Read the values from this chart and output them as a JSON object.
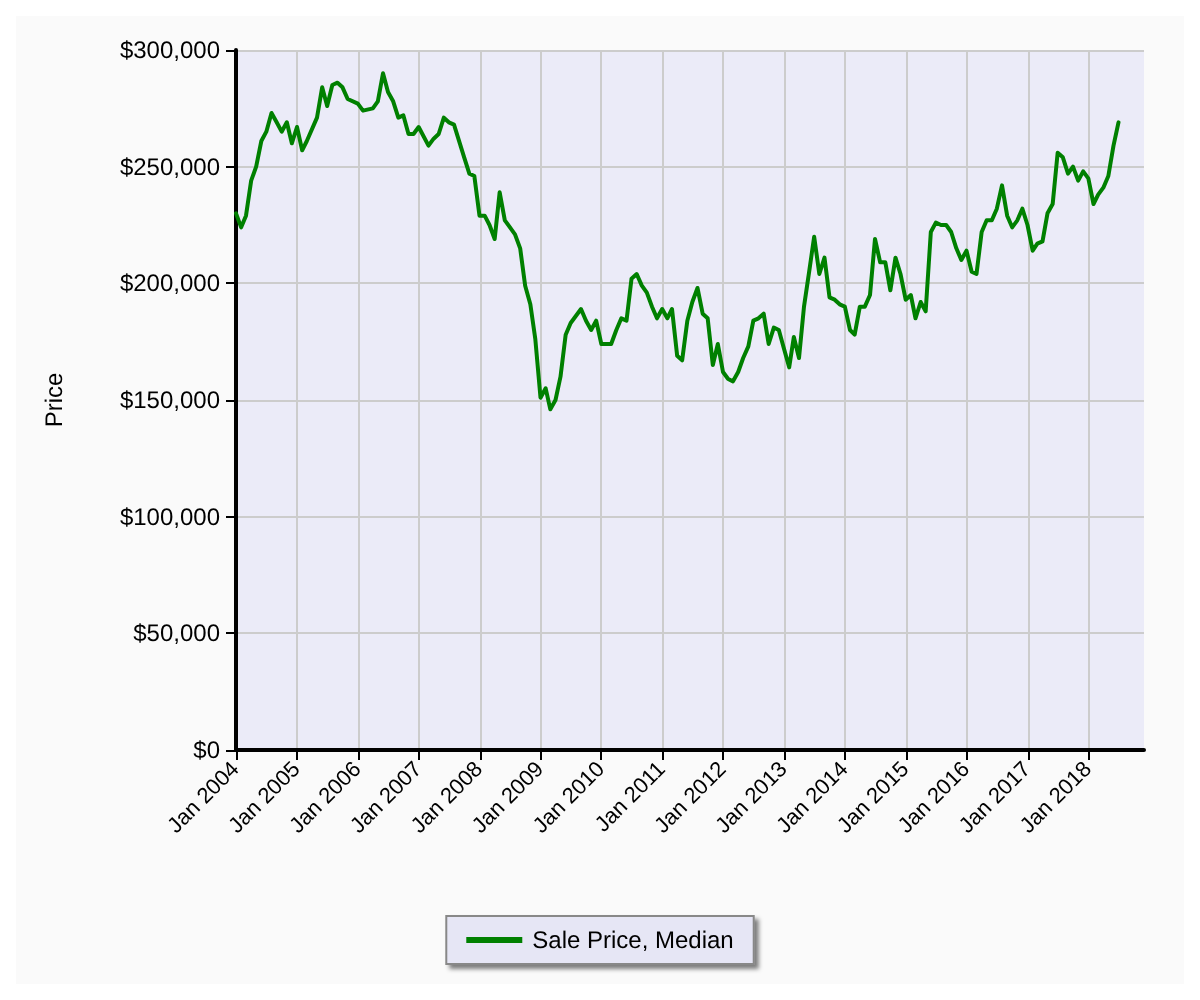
{
  "chart_data": {
    "type": "line",
    "ylabel": "Price",
    "x": [
      "2004-01",
      "2004-02",
      "2004-03",
      "2004-04",
      "2004-05",
      "2004-06",
      "2004-07",
      "2004-08",
      "2004-09",
      "2004-10",
      "2004-11",
      "2004-12",
      "2005-01",
      "2005-02",
      "2005-03",
      "2005-05",
      "2005-06",
      "2005-07",
      "2005-08",
      "2005-09",
      "2005-10",
      "2005-11",
      "2006-01",
      "2006-02",
      "2006-04",
      "2006-05",
      "2006-06",
      "2006-07",
      "2006-08",
      "2006-09",
      "2006-10",
      "2006-11",
      "2006-12",
      "2007-01",
      "2007-03",
      "2007-04",
      "2007-05",
      "2007-06",
      "2007-07",
      "2007-08",
      "2007-10",
      "2007-11",
      "2007-12",
      "2008-01",
      "2008-02",
      "2008-03",
      "2008-04",
      "2008-05",
      "2008-06",
      "2008-08",
      "2008-09",
      "2008-10",
      "2008-11",
      "2008-12",
      "2009-01",
      "2009-02",
      "2009-03",
      "2009-04",
      "2009-05",
      "2009-06",
      "2009-07",
      "2009-08",
      "2009-09",
      "2009-10",
      "2009-11",
      "2009-12",
      "2010-01",
      "2010-03",
      "2010-04",
      "2010-05",
      "2010-06",
      "2010-07",
      "2010-08",
      "2010-09",
      "2010-10",
      "2010-11",
      "2010-12",
      "2011-01",
      "2011-02",
      "2011-03",
      "2011-04",
      "2011-05",
      "2011-06",
      "2011-07",
      "2011-08",
      "2011-09",
      "2011-10",
      "2011-11",
      "2011-12",
      "2012-01",
      "2012-02",
      "2012-03",
      "2012-04",
      "2012-05",
      "2012-06",
      "2012-07",
      "2012-08",
      "2012-09",
      "2012-10",
      "2012-11",
      "2012-12",
      "2013-01",
      "2013-02",
      "2013-03",
      "2013-04",
      "2013-05",
      "2013-06",
      "2013-07",
      "2013-08",
      "2013-09",
      "2013-10",
      "2013-11",
      "2013-12",
      "2014-01",
      "2014-02",
      "2014-03",
      "2014-04",
      "2014-05",
      "2014-06",
      "2014-07",
      "2014-08",
      "2014-09",
      "2014-10",
      "2014-11",
      "2014-12",
      "2015-01",
      "2015-02",
      "2015-03",
      "2015-04",
      "2015-05",
      "2015-06",
      "2015-07",
      "2015-08",
      "2015-09",
      "2015-10",
      "2015-11",
      "2015-12",
      "2016-01",
      "2016-02",
      "2016-03",
      "2016-04",
      "2016-05",
      "2016-06",
      "2016-07",
      "2016-08",
      "2016-09",
      "2016-10",
      "2016-11",
      "2016-12",
      "2017-01",
      "2017-02",
      "2017-03",
      "2017-04",
      "2017-05",
      "2017-06",
      "2017-07",
      "2017-08",
      "2017-09",
      "2017-10",
      "2017-11",
      "2017-12",
      "2018-01",
      "2018-02",
      "2018-03",
      "2018-04",
      "2018-05",
      "2018-06",
      "2018-07"
    ],
    "series": [
      {
        "name": "Sale Price, Median",
        "color": "#008000",
        "values": [
          230000,
          224000,
          229000,
          244000,
          250000,
          261000,
          265000,
          273000,
          269000,
          265000,
          269000,
          260000,
          267000,
          257000,
          261000,
          271000,
          284000,
          276000,
          285000,
          286000,
          284000,
          279000,
          277000,
          274000,
          275000,
          278000,
          290000,
          282000,
          278000,
          271000,
          272000,
          264000,
          264000,
          267000,
          259000,
          262000,
          264000,
          271000,
          269000,
          268000,
          254000,
          247000,
          246000,
          229000,
          229000,
          225000,
          219000,
          239000,
          227000,
          221000,
          215000,
          199000,
          191000,
          176000,
          151000,
          155000,
          146000,
          150000,
          160000,
          178000,
          183000,
          186000,
          189000,
          184000,
          180000,
          184000,
          174000,
          174000,
          180000,
          185000,
          184000,
          202000,
          204000,
          199000,
          196000,
          190000,
          185000,
          189000,
          185000,
          189000,
          169000,
          167000,
          184000,
          192000,
          198000,
          187000,
          185000,
          165000,
          174000,
          162000,
          159000,
          158000,
          162000,
          168000,
          173000,
          184000,
          185000,
          187000,
          174000,
          181000,
          180000,
          172000,
          164000,
          177000,
          168000,
          190000,
          205000,
          220000,
          204000,
          211000,
          194000,
          193000,
          191000,
          190000,
          180000,
          178000,
          190000,
          190000,
          195000,
          219000,
          209000,
          209000,
          197000,
          211000,
          204000,
          193000,
          195000,
          185000,
          192000,
          188000,
          222000,
          226000,
          225000,
          225000,
          222000,
          215000,
          210000,
          214000,
          205000,
          204000,
          222000,
          227000,
          227000,
          232000,
          242000,
          229000,
          224000,
          227000,
          232000,
          225000,
          214000,
          217000,
          218000,
          230000,
          234000,
          256000,
          254000,
          247000,
          250000,
          244000,
          248000,
          245000,
          234000,
          238000,
          241000,
          246000,
          259000,
          269000
        ]
      }
    ],
    "xlim": [
      "2004-01",
      "2018-12"
    ],
    "xticks": [
      {
        "value": "2004-01",
        "label": "Jan 2004"
      },
      {
        "value": "2005-01",
        "label": "Jan 2005"
      },
      {
        "value": "2006-01",
        "label": "Jan 2006"
      },
      {
        "value": "2007-01",
        "label": "Jan 2007"
      },
      {
        "value": "2008-01",
        "label": "Jan 2008"
      },
      {
        "value": "2009-01",
        "label": "Jan 2009"
      },
      {
        "value": "2010-01",
        "label": "Jan 2010"
      },
      {
        "value": "2011-01",
        "label": "Jan 2011"
      },
      {
        "value": "2012-01",
        "label": "Jan 2012"
      },
      {
        "value": "2013-01",
        "label": "Jan 2013"
      },
      {
        "value": "2014-01",
        "label": "Jan 2014"
      },
      {
        "value": "2015-01",
        "label": "Jan 2015"
      },
      {
        "value": "2016-01",
        "label": "Jan 2016"
      },
      {
        "value": "2017-01",
        "label": "Jan 2017"
      },
      {
        "value": "2018-01",
        "label": "Jan 2018"
      }
    ],
    "ylim": [
      0,
      300000
    ],
    "yticks": [
      {
        "value": 0,
        "label": "$0"
      },
      {
        "value": 50000,
        "label": "$50,000"
      },
      {
        "value": 100000,
        "label": "$100,000"
      },
      {
        "value": 150000,
        "label": "$150,000"
      },
      {
        "value": 200000,
        "label": "$200,000"
      },
      {
        "value": 250000,
        "label": "$250,000"
      },
      {
        "value": 300000,
        "label": "$300,000"
      }
    ],
    "grid": true,
    "legend": "bottom",
    "marker": "none",
    "line_style": "solid"
  }
}
